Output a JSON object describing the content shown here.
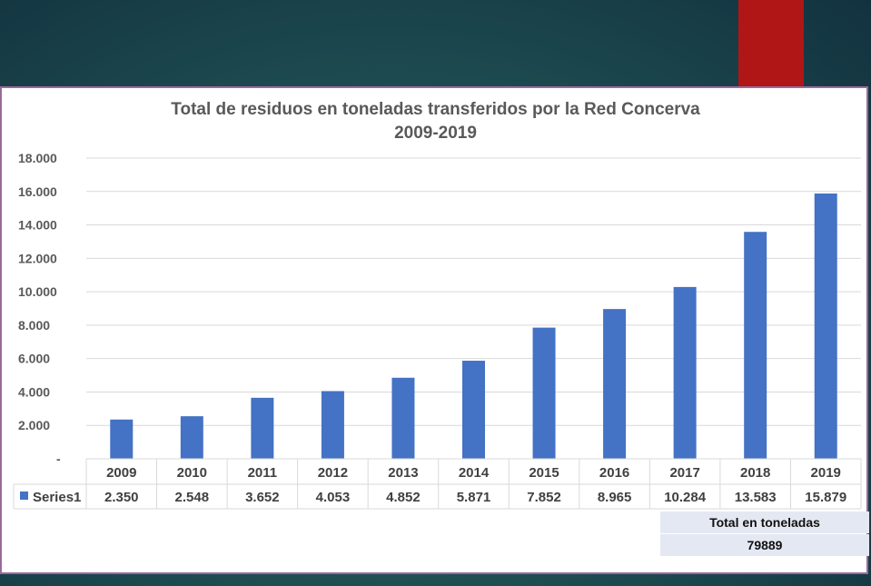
{
  "chart_data": {
    "type": "bar",
    "title": "Total de residuos en toneladas transferidos por la Red Concerva",
    "subtitle": "2009-2019",
    "categories": [
      "2009",
      "2010",
      "2011",
      "2012",
      "2013",
      "2014",
      "2015",
      "2016",
      "2017",
      "2018",
      "2019"
    ],
    "series": [
      {
        "name": "Series1",
        "values": [
          2350,
          2548,
          3652,
          4053,
          4852,
          5871,
          7852,
          8965,
          10284,
          13583,
          15879
        ],
        "labels": [
          "2.350",
          "2.548",
          "3.652",
          "4.053",
          "4.852",
          "5.871",
          "7.852",
          "8.965",
          "10.284",
          "13.583",
          "15.879"
        ]
      }
    ],
    "yticks": [
      "-",
      "2.000",
      "4.000",
      "6.000",
      "8.000",
      "10.000",
      "12.000",
      "14.000",
      "16.000",
      "18.000"
    ],
    "ylim": [
      0,
      18000
    ],
    "grid": true,
    "legend": "data-table",
    "bar_color": "#4472c4"
  },
  "total": {
    "label": "Total en toneladas",
    "value": "79889"
  }
}
